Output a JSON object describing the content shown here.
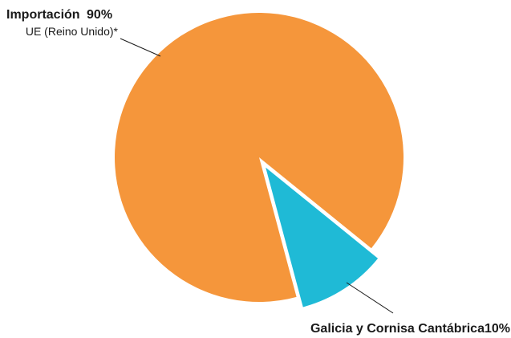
{
  "chart_data": {
    "type": "pie",
    "slices": [
      {
        "label": "Importación",
        "value": 90,
        "value_text": "90%",
        "sublabel": "UE (Reino Unido)*",
        "color": "#F5963B",
        "exploded": false
      },
      {
        "label": "Galicia y Cornisa Cantábrica",
        "value": 10,
        "value_text": "10%",
        "color": "#1FBAD6",
        "exploded": true
      }
    ],
    "legend": "none"
  }
}
